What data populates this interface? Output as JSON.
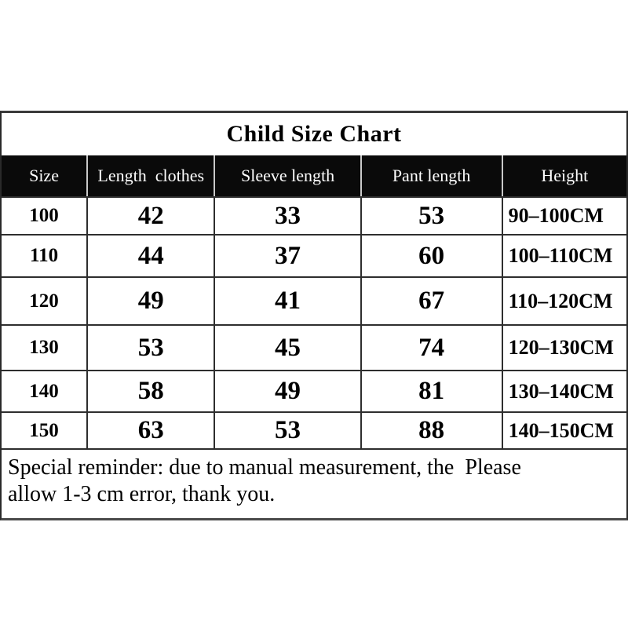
{
  "title": "Child Size Chart",
  "table": {
    "columns": {
      "size": "Size",
      "length": "Length  clothes",
      "sleeve": "Sleeve length",
      "pant": "Pant length",
      "height": "Height"
    },
    "rows": [
      {
        "size": "100",
        "length": "42",
        "sleeve": "33",
        "pant": "53",
        "height": "90–100CM"
      },
      {
        "size": "110",
        "length": "44",
        "sleeve": "37",
        "pant": "60",
        "height": "100–110CM"
      },
      {
        "size": "120",
        "length": "49",
        "sleeve": "41",
        "pant": "67",
        "height": "110–120CM"
      },
      {
        "size": "130",
        "length": "53",
        "sleeve": "45",
        "pant": "74",
        "height": "120–130CM"
      },
      {
        "size": "140",
        "length": "58",
        "sleeve": "49",
        "pant": "81",
        "height": "130–140CM"
      },
      {
        "size": "150",
        "length": "63",
        "sleeve": "53",
        "pant": "88",
        "height": "140–150CM"
      }
    ]
  },
  "reminder": {
    "line1": "Special reminder: due to manual measurement, the  Please",
    "line2": "allow 1-3 cm error, thank you."
  },
  "colors": {
    "header_bg": "#0a0a0a",
    "header_text": "#ffffff",
    "border_dark": "#2e2e2e",
    "page_bg": "#ffffff"
  },
  "chart_data": {
    "type": "table",
    "title": "Child Size Chart",
    "columns": [
      "Size",
      "Length clothes",
      "Sleeve length",
      "Pant length",
      "Height"
    ],
    "rows": [
      [
        "100",
        42,
        33,
        53,
        "90-100CM"
      ],
      [
        "110",
        44,
        37,
        60,
        "100-110CM"
      ],
      [
        "120",
        49,
        41,
        67,
        "110-120CM"
      ],
      [
        "130",
        53,
        45,
        74,
        "120-130CM"
      ],
      [
        "140",
        58,
        49,
        81,
        "130-140CM"
      ],
      [
        "150",
        63,
        53,
        88,
        "140-150CM"
      ]
    ]
  }
}
